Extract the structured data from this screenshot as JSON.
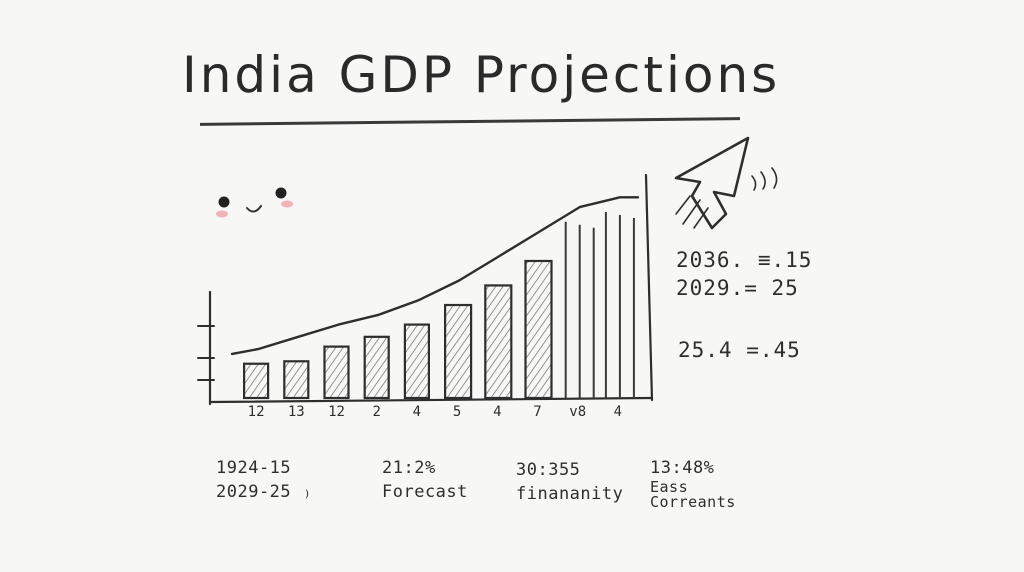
{
  "title": "India GDP Projections",
  "chart_data": {
    "type": "bar",
    "title": "India GDP Projections",
    "xlabel": "",
    "ylabel": "",
    "categories": [
      "12",
      "13",
      "12",
      "2",
      "4",
      "5",
      "4",
      "7",
      "v8",
      "4"
    ],
    "values": [
      1.4,
      1.5,
      2.1,
      2.5,
      3.0,
      3.8,
      4.6,
      5.6,
      7.2,
      7.6
    ],
    "ylim": [
      0,
      8.5
    ],
    "hatched_filled_count": 8,
    "trend_line": [
      2.0,
      2.5,
      3.0,
      3.4,
      4.0,
      4.8,
      5.8,
      6.8,
      7.8,
      8.2
    ],
    "grid": false,
    "legend": "none"
  },
  "notes": [
    "2036. ≡.15",
    "2029.= 25",
    "25.4 =.45"
  ],
  "footer": [
    {
      "line1": "1924-15",
      "line2": "2029-25 ₎"
    },
    {
      "line1": "21:2%",
      "line2": "Forecast"
    },
    {
      "line1": "30:355",
      "line2": "finananity"
    },
    {
      "line1": "13:48%",
      "line2": "Eass",
      "line3": "Correants"
    }
  ],
  "colors": {
    "ink": "#2e2e2e",
    "hatch": "#6a6a6a",
    "cheek": "#f0a0a8",
    "background": "#f7f7f6"
  }
}
